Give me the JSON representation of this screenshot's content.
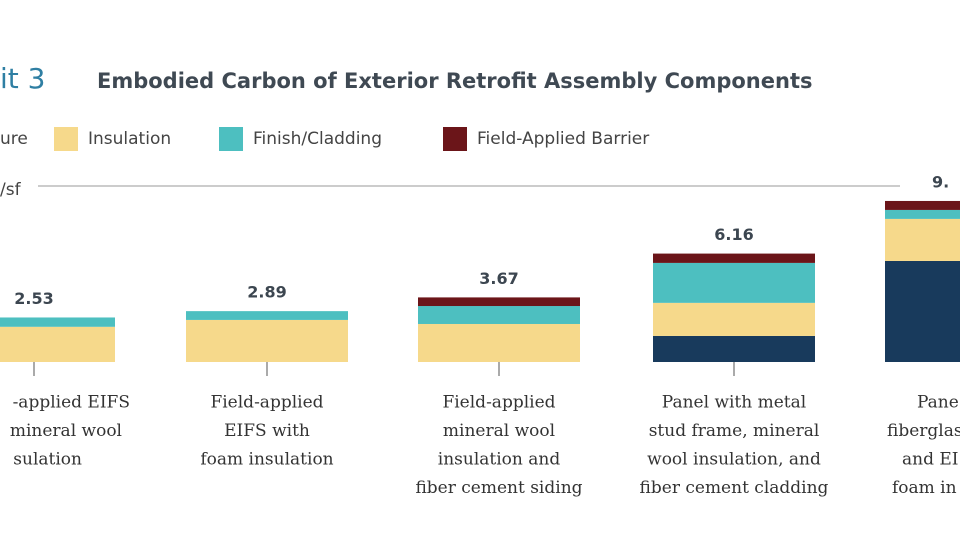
{
  "chart_data": {
    "type": "stacked-bar",
    "exhibit": "it 3",
    "title": "Embodied Carbon of Exterior Retrofit Assembly Components",
    "y_label": "/sf",
    "ylim": [
      0,
      10
    ],
    "categories": [
      [
        "-applied EIFS",
        "mineral wool",
        "sulation"
      ],
      [
        "Field-applied",
        "EIFS with",
        "foam insulation"
      ],
      [
        "Field-applied",
        "mineral wool",
        "insulation and",
        "fiber cement siding"
      ],
      [
        "Panel with metal",
        "stud frame, mineral",
        "wool insulation, and",
        "fiber cement cladding"
      ],
      [
        "Pane",
        "fiberglas",
        "and EI",
        "foam in"
      ]
    ],
    "total_labels": [
      "2.53",
      "2.89",
      "3.67",
      "6.16",
      "9."
    ],
    "series": [
      {
        "name": "ure",
        "color": "#183a5c",
        "values": [
          0,
          0,
          0,
          1.48,
          5.74
        ]
      },
      {
        "name": "Insulation",
        "color": "#f6d98b",
        "values": [
          2.0,
          2.39,
          2.16,
          1.88,
          2.39
        ]
      },
      {
        "name": "Finish/Cladding",
        "color": "#4dbfc0",
        "values": [
          0.53,
          0.5,
          1.02,
          2.27,
          0.51
        ]
      },
      {
        "name": "Field-Applied Barrier",
        "color": "#6b1519",
        "values": [
          0,
          0,
          0.49,
          0.53,
          0.51
        ]
      }
    ]
  }
}
